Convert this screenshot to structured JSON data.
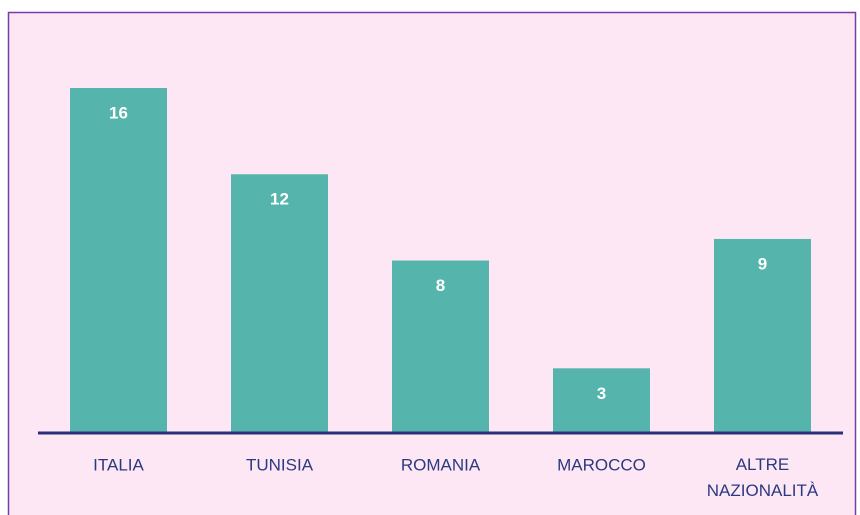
{
  "chart_data": {
    "type": "bar",
    "categories": [
      "ITALIA",
      "TUNISIA",
      "ROMANIA",
      "MAROCCO",
      "ALTRE NAZIONALITÀ"
    ],
    "values": [
      16,
      12,
      8,
      3,
      9
    ],
    "color": "#55b5ac"
  }
}
